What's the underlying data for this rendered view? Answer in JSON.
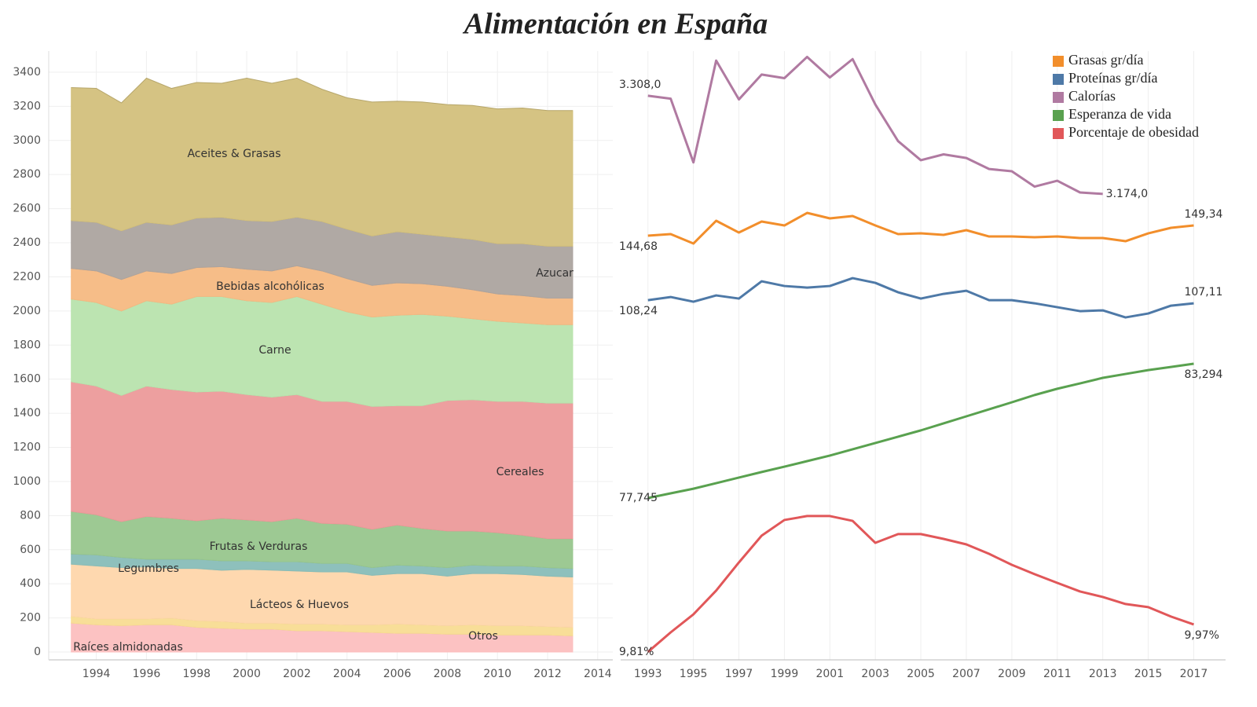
{
  "title": "Alimentación en España",
  "chart_data": [
    {
      "type": "area",
      "stacked": true,
      "x": [
        1993,
        1994,
        1995,
        1996,
        1997,
        1998,
        1999,
        2000,
        2001,
        2002,
        2003,
        2004,
        2005,
        2006,
        2007,
        2008,
        2009,
        2010,
        2011,
        2012,
        2013
      ],
      "xlim": [
        1992.1,
        2014.6
      ],
      "xticks": [
        1994,
        1996,
        1998,
        2000,
        2002,
        2004,
        2006,
        2008,
        2010,
        2012,
        2014
      ],
      "ylim": [
        -46,
        3524
      ],
      "yticks": [
        0,
        200,
        400,
        600,
        800,
        1000,
        1200,
        1400,
        1600,
        1800,
        2000,
        2200,
        2400,
        2600,
        2800,
        3000,
        3200,
        3400
      ],
      "grid": true,
      "series": [
        {
          "name": "Raíces almidonadas",
          "color": "#fcbfbf",
          "values": [
            170,
            160,
            155,
            160,
            160,
            145,
            140,
            135,
            135,
            125,
            125,
            120,
            115,
            110,
            110,
            105,
            105,
            100,
            100,
            100,
            95
          ]
        },
        {
          "name": "Otros",
          "color": "#f8dc92",
          "values": [
            40,
            35,
            40,
            35,
            40,
            40,
            40,
            35,
            35,
            40,
            40,
            40,
            45,
            55,
            50,
            50,
            55,
            55,
            55,
            50,
            50
          ]
        },
        {
          "name": "Lácteos & Huevos",
          "color": "#fed6ab",
          "values": [
            305,
            310,
            300,
            305,
            290,
            305,
            300,
            315,
            310,
            310,
            305,
            310,
            290,
            295,
            300,
            290,
            300,
            305,
            300,
            295,
            295
          ]
        },
        {
          "name": "Legumbres",
          "color": "#88bdb8",
          "values": [
            60,
            65,
            60,
            45,
            55,
            55,
            55,
            50,
            50,
            55,
            50,
            50,
            45,
            50,
            45,
            50,
            50,
            45,
            50,
            50,
            50
          ]
        },
        {
          "name": "Frutas & Verduras",
          "color": "#98c68d",
          "values": [
            250,
            235,
            210,
            250,
            240,
            225,
            250,
            240,
            235,
            255,
            235,
            230,
            225,
            235,
            220,
            215,
            200,
            195,
            180,
            170,
            175
          ]
        },
        {
          "name": "Cereales",
          "color": "#ec9a9a",
          "values": [
            760,
            755,
            740,
            765,
            755,
            755,
            745,
            735,
            730,
            725,
            715,
            720,
            720,
            700,
            720,
            765,
            770,
            770,
            785,
            795,
            795
          ]
        },
        {
          "name": "Carne",
          "color": "#b8e3ad",
          "values": [
            485,
            490,
            495,
            500,
            500,
            560,
            555,
            550,
            555,
            575,
            570,
            525,
            525,
            530,
            535,
            495,
            475,
            470,
            460,
            460,
            460
          ]
        },
        {
          "name": "Bebidas alcohólicas",
          "color": "#f5b982",
          "values": [
            180,
            185,
            185,
            175,
            180,
            170,
            175,
            185,
            185,
            180,
            195,
            195,
            185,
            190,
            180,
            175,
            170,
            160,
            160,
            155,
            155
          ]
        },
        {
          "name": "Azucar",
          "color": "#aca49f",
          "values": [
            280,
            285,
            285,
            285,
            285,
            290,
            290,
            285,
            290,
            285,
            290,
            290,
            290,
            300,
            290,
            290,
            295,
            295,
            305,
            305,
            305
          ]
        },
        {
          "name": "Aceites & Grasas",
          "color": "#d3c07c",
          "values": [
            780,
            785,
            750,
            845,
            800,
            795,
            785,
            835,
            810,
            815,
            775,
            770,
            785,
            765,
            775,
            775,
            785,
            790,
            795,
            795,
            795
          ]
        }
      ]
    },
    {
      "type": "line",
      "legend": "top-right",
      "grid": true,
      "x": [
        1993,
        1994,
        1995,
        1996,
        1997,
        1998,
        1999,
        2000,
        2001,
        2002,
        2003,
        2004,
        2005,
        2006,
        2007,
        2008,
        2009,
        2010,
        2011,
        2012,
        2013,
        2014,
        2015,
        2016,
        2017
      ],
      "xlim": [
        1991.8,
        2018.4
      ],
      "xticks": [
        1993,
        1995,
        1997,
        1999,
        2001,
        2003,
        2005,
        2007,
        2009,
        2011,
        2013,
        2015,
        2017
      ],
      "series": [
        {
          "name": "Grasas gr/día",
          "color": "#f28e2b",
          "ylim": [
            -48.6,
            228.8
          ],
          "values": [
            144.68,
            145.4,
            141.1,
            151.48,
            146.11,
            151.12,
            149.33,
            155.06,
            152.56,
            153.63,
            149.33,
            145.4,
            145.75,
            145.04,
            147.19,
            144.32,
            144.32,
            143.96,
            144.32,
            143.61,
            143.61,
            142.17,
            145.75,
            148.26,
            149.34
          ],
          "value_labels": [
            "144,68",
            null,
            null,
            null,
            null,
            null,
            null,
            null,
            null,
            null,
            null,
            null,
            null,
            null,
            null,
            null,
            null,
            null,
            null,
            null,
            null,
            null,
            null,
            null,
            "149,34"
          ]
        },
        {
          "name": "Proteínas gr/día",
          "color": "#4e79a7",
          "ylim": [
            -21.1,
            197.8
          ],
          "values": [
            108.24,
            109.37,
            107.68,
            109.94,
            108.81,
            115.02,
            113.33,
            112.76,
            113.33,
            116.15,
            114.46,
            111.07,
            108.81,
            110.5,
            111.63,
            108.24,
            108.24,
            107.11,
            105.7,
            104.29,
            104.57,
            102.03,
            103.44,
            106.26,
            107.11
          ],
          "value_labels": [
            "108,24",
            null,
            null,
            null,
            null,
            null,
            null,
            null,
            null,
            null,
            null,
            null,
            null,
            null,
            null,
            null,
            null,
            null,
            null,
            null,
            null,
            null,
            null,
            null,
            "107,11"
          ]
        },
        {
          "name": "Calorías",
          "color": "#b07aa1",
          "ylim": [
            2538,
            3369
          ],
          "values": [
            3308.0,
            3304,
            3217,
            3356,
            3303,
            3337,
            3332,
            3361,
            3333,
            3358,
            3296,
            3246,
            3220,
            3228,
            3223,
            3208,
            3205,
            3184,
            3192,
            3176,
            3174.0,
            null,
            null,
            null,
            null
          ],
          "value_labels": [
            "3.308,0",
            null,
            null,
            null,
            null,
            null,
            null,
            null,
            null,
            null,
            null,
            null,
            null,
            null,
            null,
            null,
            null,
            null,
            null,
            null,
            "3.174,0",
            null,
            null,
            null,
            null
          ]
        },
        {
          "name": "Esperanza de vida",
          "color": "#59a14f",
          "ylim": [
            71.06,
            96.21
          ],
          "values": [
            77.745,
            77.94,
            78.13,
            78.36,
            78.59,
            78.82,
            79.04,
            79.27,
            79.5,
            79.76,
            80.02,
            80.28,
            80.54,
            80.83,
            81.12,
            81.41,
            81.7,
            82.0,
            82.26,
            82.48,
            82.71,
            82.87,
            83.03,
            83.16,
            83.294
          ],
          "value_labels": [
            "77,745",
            null,
            null,
            null,
            null,
            null,
            null,
            null,
            null,
            null,
            null,
            null,
            null,
            null,
            null,
            null,
            null,
            null,
            null,
            null,
            null,
            null,
            null,
            null,
            "83,294"
          ]
        },
        {
          "name": "Porcentaje de obesidad",
          "color": "#e15759",
          "ylim": [
            9.764,
            13.307
          ],
          "values": [
            9.81,
            9.924,
            10.029,
            10.167,
            10.331,
            10.487,
            10.578,
            10.601,
            10.601,
            10.573,
            10.445,
            10.496,
            10.496,
            10.468,
            10.436,
            10.381,
            10.317,
            10.263,
            10.212,
            10.162,
            10.13,
            10.089,
            10.071,
            10.016,
            9.97
          ],
          "value_labels": [
            "9,81%",
            null,
            null,
            null,
            null,
            null,
            null,
            null,
            null,
            null,
            null,
            null,
            null,
            null,
            null,
            null,
            null,
            null,
            null,
            null,
            null,
            null,
            null,
            null,
            "9,97%"
          ]
        }
      ]
    }
  ]
}
